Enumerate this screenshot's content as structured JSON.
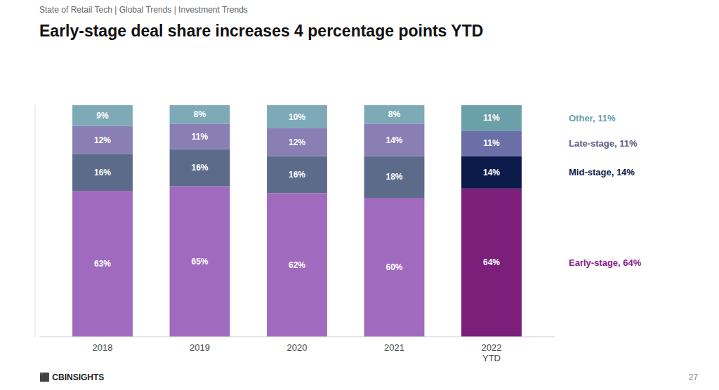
{
  "chart_data": {
    "type": "bar",
    "stacked": true,
    "title": "Early-stage deal share increases 4 percentage points YTD",
    "subtitle": "State of Retail Tech  |  Global Trends  |  Investment Trends",
    "categories": [
      "2018",
      "2019",
      "2020",
      "2021",
      "2022\nYTD"
    ],
    "series": [
      {
        "name": "Early-stage",
        "values": [
          63,
          65,
          62,
          60,
          64
        ],
        "value_labels": [
          "63%",
          "65%",
          "62%",
          "60%",
          "64%"
        ],
        "colors": [
          "#A06ABE",
          "#A06ABE",
          "#A06ABE",
          "#A06ABE",
          "#7B1F7B"
        ]
      },
      {
        "name": "Mid-stage",
        "values": [
          16,
          16,
          16,
          18,
          14
        ],
        "value_labels": [
          "16%",
          "16%",
          "16%",
          "18%",
          "14%"
        ],
        "colors": [
          "#5D6B8A",
          "#5D6B8A",
          "#5D6B8A",
          "#5D6B8A",
          "#0D1B4B"
        ]
      },
      {
        "name": "Late-stage",
        "values": [
          12,
          11,
          12,
          14,
          11
        ],
        "value_labels": [
          "12%",
          "11%",
          "12%",
          "14%",
          "11%"
        ],
        "colors": [
          "#8A7FB5",
          "#8A7FB5",
          "#8A7FB5",
          "#8A7FB5",
          "#6B6FA8"
        ]
      },
      {
        "name": "Other",
        "values": [
          9,
          8,
          10,
          8,
          11
        ],
        "value_labels": [
          "9%",
          "8%",
          "10%",
          "8%",
          "11%"
        ],
        "colors": [
          "#7EAAB8",
          "#7EAAB8",
          "#7EAAB8",
          "#7EAAB8",
          "#6CA0A8"
        ]
      }
    ],
    "annotations": [
      {
        "text": "Other, 11%",
        "color": "#6CA0A8"
      },
      {
        "text": "Late-stage, 11%",
        "color": "#5C5F8A"
      },
      {
        "text": "Mid-stage, 14%",
        "color": "#0D1B4B"
      },
      {
        "text": "Early-stage, 64%",
        "color": "#8B1A8B"
      },
      {
        "text": "⬛ CBINSIGHTS"
      },
      {
        "text": "27"
      }
    ],
    "ylim": [
      0,
      100
    ],
    "grid": false,
    "data_labels": true,
    "tick_labels": "x"
  }
}
